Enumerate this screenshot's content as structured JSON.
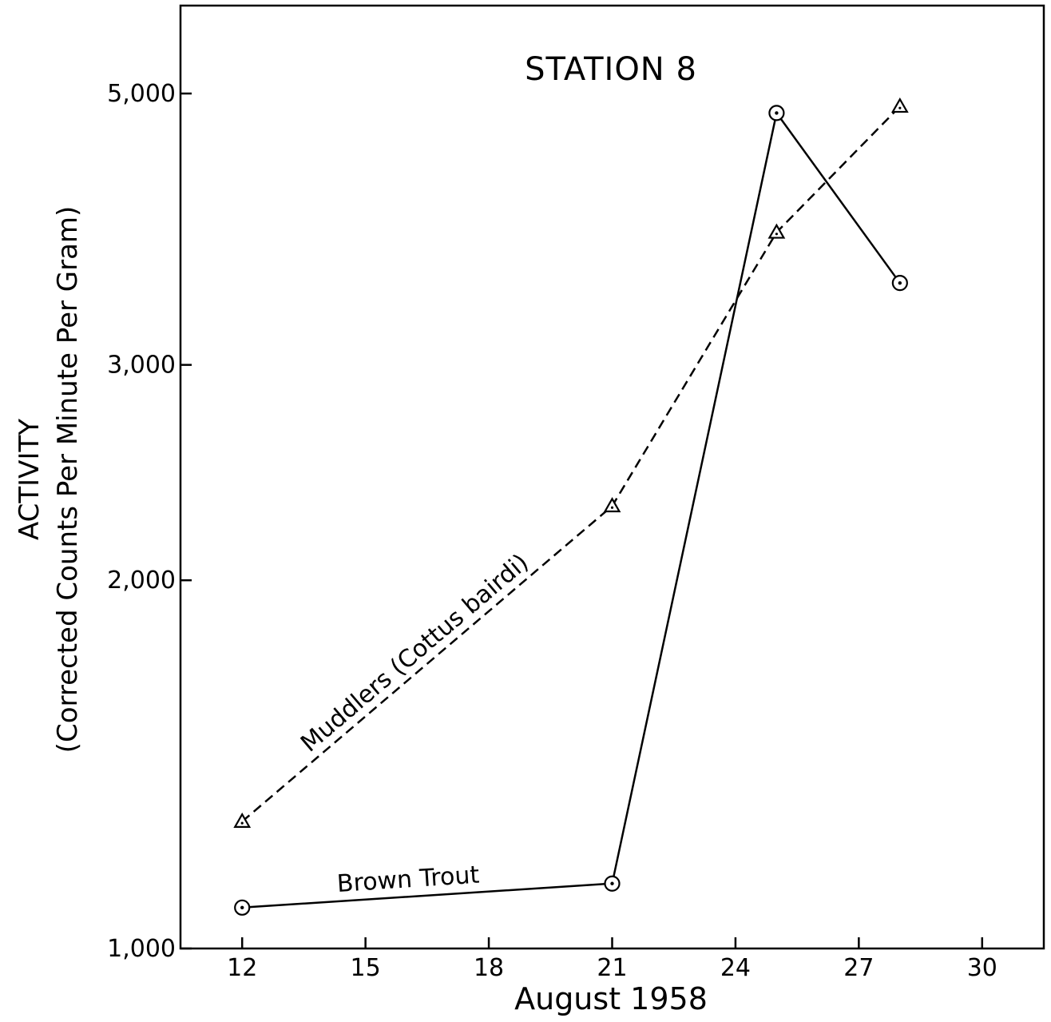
{
  "chart_data": {
    "type": "line",
    "title": "STATION 8",
    "xlabel": "August 1958",
    "ylabel_line1": "ACTIVITY",
    "ylabel_line2": "(Corrected Counts Per Minute Per Gram)",
    "x_ticks": [
      12,
      15,
      18,
      21,
      24,
      27,
      30
    ],
    "x_tick_labels": [
      "12",
      "15",
      "18",
      "21",
      "24",
      "27",
      "30"
    ],
    "xlim": [
      10.5,
      31.5
    ],
    "y_scale": "log",
    "y_ticks": [
      1000,
      2000,
      3000,
      5000
    ],
    "y_tick_labels": [
      "1,000",
      "2,000",
      "3,000",
      "5,000"
    ],
    "ylim": [
      1000,
      5900
    ],
    "grid": false,
    "series": [
      {
        "name": "Muddlers (Cottus bairdi)",
        "style": "dashed",
        "marker": "triangle",
        "x": [
          12,
          21,
          25,
          28
        ],
        "y": [
          1270,
          2300,
          3850,
          4880
        ]
      },
      {
        "name": "Brown Trout",
        "style": "solid",
        "marker": "circle-dot",
        "x": [
          12,
          21,
          25,
          28
        ],
        "y": [
          1080,
          1130,
          4820,
          3500
        ]
      }
    ],
    "colors": {
      "ink": "#000000",
      "background": "#ffffff"
    }
  }
}
